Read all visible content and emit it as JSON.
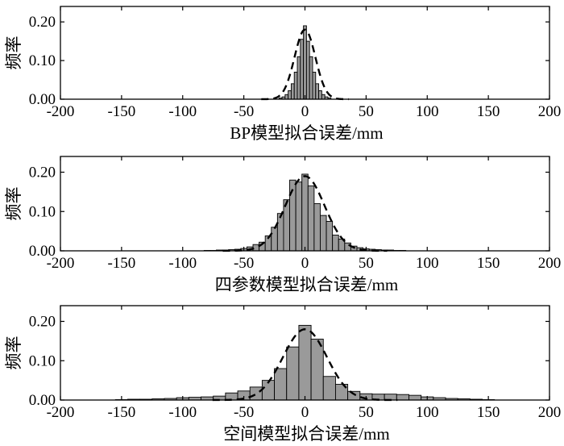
{
  "chart_data": [
    {
      "type": "bar",
      "xlabel": "BP模型拟合误差/mm",
      "ylabel": "频率",
      "xlim": [
        -200,
        200
      ],
      "ylim": [
        0,
        0.24
      ],
      "xticks": [
        "-200",
        "-150",
        "-100",
        "-50",
        "0",
        "50",
        "100",
        "150",
        "200"
      ],
      "yticks": [
        "0.00",
        "0.10",
        "0.20"
      ],
      "bin_width": 2.5,
      "x": [
        -20,
        -17.5,
        -15,
        -12.5,
        -10,
        -7.5,
        -5,
        -2.5,
        0,
        2.5,
        5,
        7.5,
        10,
        12.5,
        15,
        17.5,
        20
      ],
      "values": [
        0.003,
        0.006,
        0.012,
        0.022,
        0.04,
        0.07,
        0.11,
        0.155,
        0.19,
        0.15,
        0.11,
        0.07,
        0.04,
        0.022,
        0.012,
        0.006,
        0.003
      ],
      "fit_sigma": 8.5,
      "fit_peak": 0.18
    },
    {
      "type": "bar",
      "xlabel": "四参数模型拟合误差/mm",
      "ylabel": "频率",
      "xlim": [
        -200,
        200
      ],
      "ylim": [
        0,
        0.24
      ],
      "xticks": [
        "-200",
        "-150",
        "-100",
        "-50",
        "0",
        "50",
        "100",
        "150",
        "200"
      ],
      "yticks": [
        "0.00",
        "0.10",
        "0.20"
      ],
      "bin_width": 5,
      "x": [
        -80,
        -75,
        -70,
        -65,
        -60,
        -55,
        -50,
        -45,
        -40,
        -35,
        -30,
        -25,
        -20,
        -15,
        -10,
        -5,
        0,
        5,
        10,
        15,
        20,
        25,
        30,
        35,
        40,
        45,
        50,
        55,
        60,
        65,
        70,
        75,
        80
      ],
      "values": [
        0.001,
        0.001,
        0.002,
        0.002,
        0.003,
        0.004,
        0.006,
        0.01,
        0.016,
        0.022,
        0.038,
        0.06,
        0.095,
        0.13,
        0.18,
        0.175,
        0.195,
        0.165,
        0.12,
        0.09,
        0.075,
        0.04,
        0.03,
        0.02,
        0.012,
        0.008,
        0.005,
        0.004,
        0.003,
        0.002,
        0.002,
        0.001,
        0.001
      ],
      "fit_sigma": 16,
      "fit_peak": 0.19
    },
    {
      "type": "bar",
      "xlabel": "空间模型拟合误差/mm",
      "ylabel": "频率",
      "xlim": [
        -200,
        200
      ],
      "ylim": [
        0,
        0.24
      ],
      "xticks": [
        "-200",
        "-150",
        "-100",
        "-50",
        "0",
        "50",
        "100",
        "150",
        "200"
      ],
      "yticks": [
        "0.00",
        "0.10",
        "0.20"
      ],
      "bin_width": 10,
      "x": [
        -150,
        -140,
        -130,
        -120,
        -110,
        -100,
        -90,
        -80,
        -70,
        -60,
        -50,
        -40,
        -30,
        -20,
        -10,
        0,
        10,
        20,
        30,
        40,
        50,
        60,
        70,
        80,
        90,
        100,
        110,
        120,
        130,
        140,
        150
      ],
      "values": [
        0.001,
        0.002,
        0.002,
        0.003,
        0.004,
        0.006,
        0.007,
        0.008,
        0.01,
        0.018,
        0.023,
        0.033,
        0.05,
        0.08,
        0.135,
        0.19,
        0.155,
        0.06,
        0.04,
        0.022,
        0.016,
        0.015,
        0.015,
        0.014,
        0.012,
        0.008,
        0.006,
        0.004,
        0.003,
        0.002,
        0.001
      ],
      "fit_sigma": 18,
      "fit_peak": 0.18
    }
  ]
}
